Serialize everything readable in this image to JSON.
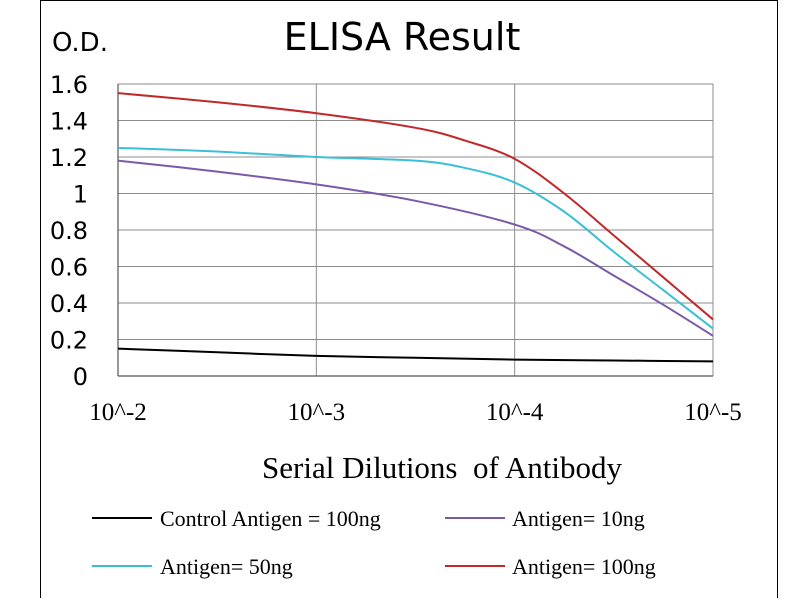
{
  "chart_data": {
    "type": "line",
    "title": "ELISA Result",
    "ylabel": "O.D.",
    "xlabel": "Serial Dilutions  of Antibody",
    "x_ticks": [
      "10^-2",
      "10^-3",
      "10^-4",
      "10^-5"
    ],
    "y_ticks": [
      "0",
      "0.2",
      "0.4",
      "0.6",
      "0.8",
      "1",
      "1.2",
      "1.4",
      "1.6"
    ],
    "ylim": [
      0,
      1.6
    ],
    "grid": true,
    "legend_position": "bottom",
    "series": [
      {
        "name": "Control Antigen = 100ng",
        "color": "#000000",
        "x": [
          0,
          0.5,
          1,
          1.5,
          2,
          2.5,
          3
        ],
        "values": [
          0.15,
          0.13,
          0.11,
          0.1,
          0.09,
          0.085,
          0.08
        ]
      },
      {
        "name": "Antigen= 10ng",
        "color": "#7a5aa8",
        "x": [
          0,
          0.5,
          1,
          1.5,
          2,
          2.25,
          2.5,
          2.75,
          3
        ],
        "values": [
          1.18,
          1.12,
          1.05,
          0.96,
          0.83,
          0.71,
          0.55,
          0.39,
          0.22
        ]
      },
      {
        "name": "Antigen= 50ng",
        "color": "#3bbfd6",
        "x": [
          0,
          0.5,
          1,
          1.5,
          1.75,
          2,
          2.25,
          2.5,
          2.75,
          3
        ],
        "values": [
          1.25,
          1.23,
          1.2,
          1.18,
          1.14,
          1.06,
          0.9,
          0.68,
          0.47,
          0.26
        ]
      },
      {
        "name": "Antigen= 100ng",
        "color": "#c0282a",
        "x": [
          0,
          0.5,
          1,
          1.5,
          1.75,
          2,
          2.25,
          2.5,
          2.75,
          3
        ],
        "values": [
          1.55,
          1.5,
          1.44,
          1.36,
          1.29,
          1.19,
          1.0,
          0.77,
          0.54,
          0.31
        ]
      }
    ]
  }
}
